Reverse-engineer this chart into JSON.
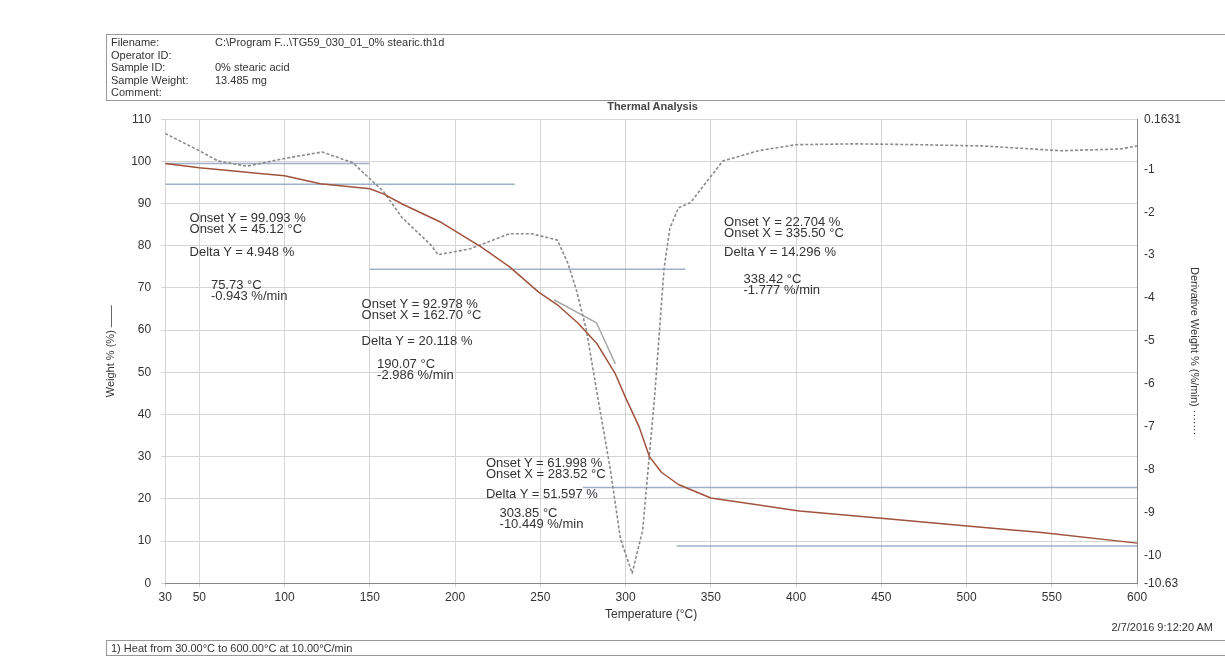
{
  "chart_data": {
    "type": "line",
    "title": "Thermal Analysis",
    "xlabel": "Temperature (°C)",
    "ylabel": "Weight % (%) ——",
    "y2label": "Derivative Weight % (%/min) ·······",
    "xlim": [
      30,
      600
    ],
    "xticks": [
      30,
      50,
      100,
      150,
      200,
      250,
      300,
      350,
      400,
      450,
      500,
      550,
      600
    ],
    "ylim": [
      0,
      110
    ],
    "yticks": [
      0,
      10,
      20,
      30,
      40,
      50,
      60,
      70,
      80,
      90,
      100,
      110
    ],
    "y2lim": [
      -10.63,
      0.1631
    ],
    "y2ticks": [
      0.1631,
      -1,
      -2,
      -3,
      -4,
      -5,
      -6,
      -7,
      -8,
      -9,
      -10,
      -10.63
    ],
    "grid": true,
    "legend": false,
    "marker": "none",
    "series": [
      {
        "color": "#a0523c",
        "line_style": "solid",
        "x": [
          30,
          50,
          78,
          100,
          121,
          150,
          158,
          169,
          192,
          215,
          232,
          249,
          260,
          272,
          283,
          294,
          300,
          308,
          314,
          321,
          331,
          350,
          402,
          450,
          497,
          544,
          600
        ],
        "values": [
          99.5,
          98.5,
          97.4,
          96.6,
          94.7,
          93.5,
          92.3,
          89.9,
          85.5,
          79.8,
          75,
          69,
          66,
          61.7,
          56.9,
          49.6,
          44,
          37,
          30,
          26.3,
          23.4,
          20.2,
          17.1,
          15.4,
          13.7,
          12,
          9.5
        ]
      },
      {
        "color": "#8a8a8a",
        "line_style": "dashed",
        "axis": "y2",
        "x": [
          30,
          50,
          61,
          78,
          100,
          122,
          140,
          158,
          169,
          186,
          190,
          209,
          232,
          245,
          260,
          266,
          271,
          277,
          283,
          291,
          297,
          303.85,
          310,
          317,
          322.6,
          326,
          331,
          338,
          357,
          378,
          400,
          435,
          472,
          510,
          555,
          590,
          600
        ],
        "values": [
          -0.17,
          -0.57,
          -0.81,
          -0.93,
          -0.75,
          -0.6,
          -0.85,
          -1.52,
          -2.13,
          -2.77,
          -2.99,
          -2.85,
          -2.5,
          -2.5,
          -2.65,
          -3.17,
          -3.79,
          -4.74,
          -6.15,
          -7.97,
          -9.6,
          -10.4,
          -9.4,
          -6.3,
          -3.3,
          -2.37,
          -1.9,
          -1.78,
          -0.81,
          -0.57,
          -0.43,
          -0.41,
          -0.43,
          -0.46,
          -0.57,
          -0.53,
          -0.46
        ]
      },
      {
        "color": "#9fb0c8",
        "line_style": "solid",
        "x": [
          30,
          150
        ],
        "values": [
          99.5,
          99.5
        ]
      },
      {
        "color": "#9fb0c8",
        "line_style": "solid",
        "x": [
          30,
          235
        ],
        "values": [
          94.6,
          94.6
        ]
      },
      {
        "color": "#9fb0c8",
        "line_style": "solid",
        "x": [
          150,
          335
        ],
        "values": [
          74.4,
          74.4
        ]
      },
      {
        "color": "#9fb0c8",
        "line_style": "solid",
        "x": [
          275,
          600
        ],
        "values": [
          22.7,
          22.7
        ]
      },
      {
        "color": "#9fb0c8",
        "line_style": "solid",
        "x": [
          330,
          600
        ],
        "values": [
          8.8,
          8.8
        ]
      },
      {
        "color": "#a8a8a8",
        "line_style": "solid",
        "x": [
          258,
          283,
          294
        ],
        "values": [
          67.2,
          61.7,
          52
        ]
      }
    ],
    "annotations": [
      "Filename:\tC:\\Program F...\\TG59_030_01_0% stearic.th1d",
      "Operator ID:",
      "Sample ID:\t0% stearic acid",
      "Sample Weight:\t13.485 mg",
      "Comment:",
      "1) Heat from 30.00°C to 600.00°C at 10.00°C/min",
      "2/7/2016 9:12:20 AM",
      "Onset Y = 99.093 %\nOnset X = 45.12 °C",
      "Delta Y = 4.948 %",
      "75.73 °C\n-0.943 %/min",
      "Onset Y = 92.978 %\nOnset X = 162.70 °C",
      "Delta Y = 20.118 %",
      "190.07 °C\n-2.986 %/min",
      "Onset Y = 22.704 %\nOnset X = 335.50 °C",
      "Delta Y = 14.296 %",
      "338.42 °C\n-1.777 %/min",
      "Onset Y = 61.998 %\nOnset X = 283.52 °C",
      "Delta Y = 51.597 %",
      "303.85 °C\n-10.449 %/min"
    ]
  }
}
